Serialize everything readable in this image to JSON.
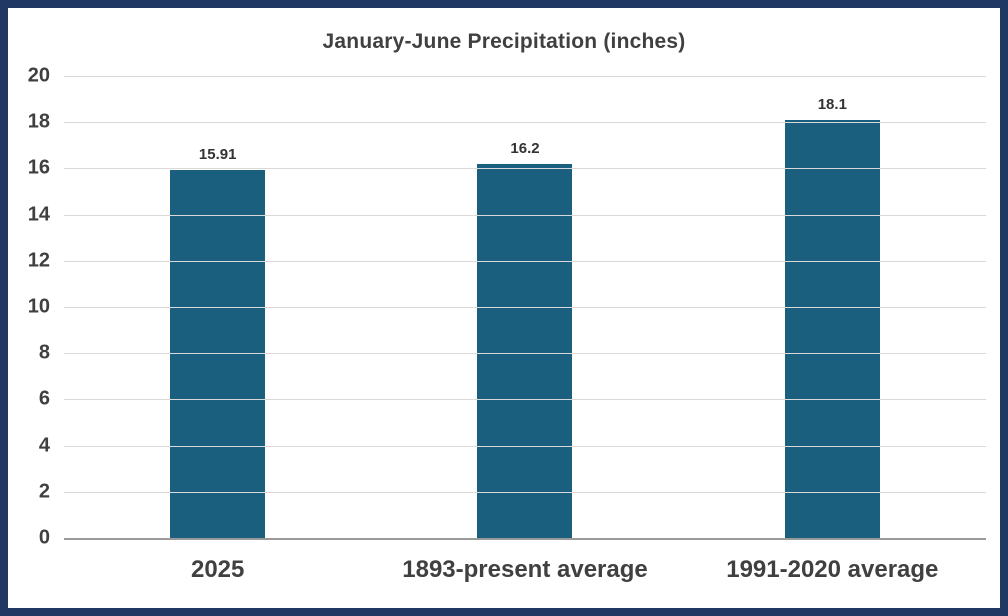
{
  "chart_data": {
    "type": "bar",
    "title": "January-June Precipitation (inches)",
    "categories": [
      "2025",
      "1893-present average",
      "1991-2020 average"
    ],
    "values": [
      15.91,
      16.2,
      18.1
    ],
    "value_labels": [
      "15.91",
      "16.2",
      "18.1"
    ],
    "xlabel": "",
    "ylabel": "",
    "ylim": [
      0,
      20
    ],
    "ytick_step": 2,
    "yticks": [
      "0",
      "2",
      "4",
      "6",
      "8",
      "10",
      "12",
      "14",
      "16",
      "18",
      "20"
    ],
    "grid": "horizontal",
    "legend": "none",
    "bar_color": "#1b5f7e",
    "frame_border_color": "#1f3864",
    "text_color": "#404040",
    "gridline_color": "#d9d9d9"
  }
}
